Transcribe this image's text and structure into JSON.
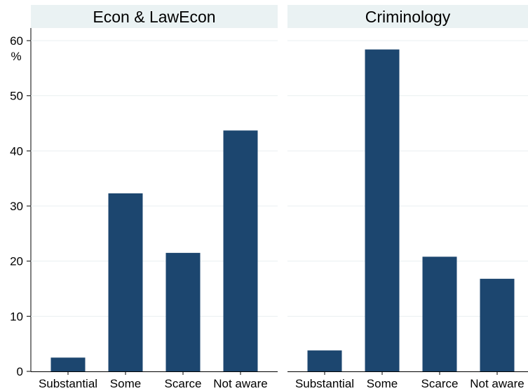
{
  "chart_data": {
    "type": "bar",
    "ylabel": "%",
    "ylim": [
      0,
      60
    ],
    "yticks": [
      0,
      10,
      20,
      30,
      40,
      50,
      60
    ],
    "grid": true,
    "categories": [
      "Substantial",
      "Some",
      "Scarce",
      "Not aware"
    ],
    "panels": [
      {
        "title": "Econ & LawEcon",
        "values": [
          2.5,
          32.3,
          21.5,
          43.7
        ]
      },
      {
        "title": "Criminology",
        "values": [
          3.8,
          58.4,
          20.8,
          16.8
        ]
      }
    ],
    "colors": {
      "bar": "#1c466f",
      "header": "#eaf2f3",
      "grid": "#e9eff1",
      "axis": "#000000"
    }
  }
}
